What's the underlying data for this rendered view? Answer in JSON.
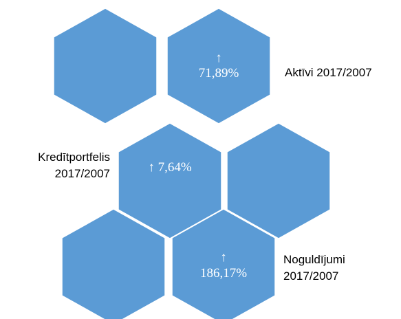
{
  "hexagons": [
    {
      "lines": []
    },
    {
      "lines": [
        "↑",
        "71,89%"
      ]
    },
    {
      "lines": [
        "↑ 7,64%"
      ]
    },
    {
      "lines": []
    },
    {
      "lines": []
    },
    {
      "lines": [
        "↑",
        "186,17%"
      ]
    }
  ],
  "labels": [
    {
      "lines": [
        "Aktīvi 2017/2007"
      ]
    },
    {
      "lines": [
        "Kredītportfelis",
        "2017/2007"
      ]
    },
    {
      "lines": [
        "Noguldījumi",
        "2017/2007"
      ]
    }
  ]
}
